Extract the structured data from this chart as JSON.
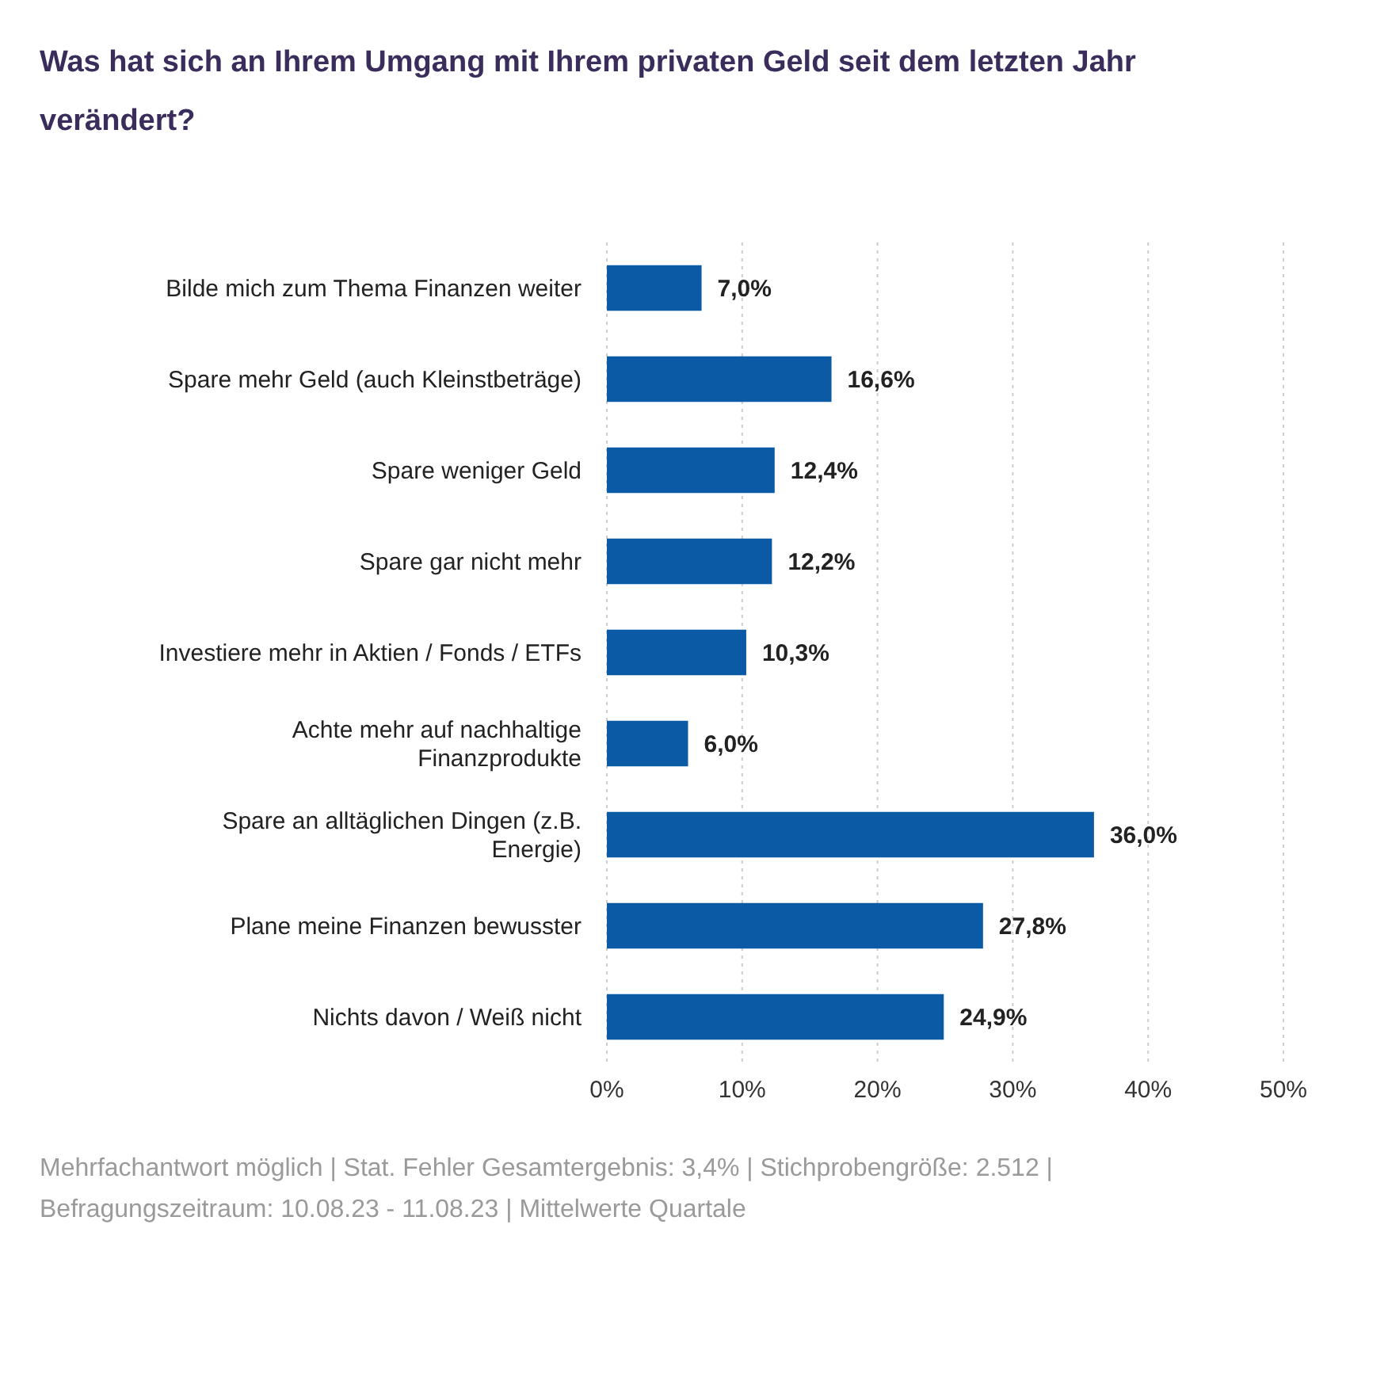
{
  "chart_data": {
    "type": "bar",
    "orientation": "horizontal",
    "title": "Was hat sich an Ihrem Umgang mit Ihrem privaten Geld seit dem letzten Jahr verändert?",
    "categories": [
      "Bilde mich zum Thema Finanzen weiter",
      "Spare mehr Geld (auch Kleinstbeträge)",
      "Spare weniger Geld",
      "Spare gar nicht mehr",
      "Investiere mehr in Aktien / Fonds / ETFs",
      "Achte mehr auf nachhaltige Finanzprodukte",
      "Spare an alltäglichen Dingen (z.B. Energie)",
      "Plane meine Finanzen bewusster",
      "Nichts davon / Weiß nicht"
    ],
    "values": [
      7.0,
      16.6,
      12.4,
      12.2,
      10.3,
      6.0,
      36.0,
      27.8,
      24.9
    ],
    "value_labels": [
      "7,0%",
      "16,6%",
      "12,4%",
      "12,2%",
      "10,3%",
      "6,0%",
      "36,0%",
      "27,8%",
      "24,9%"
    ],
    "color": "#0a5aa6",
    "grid": "x",
    "xlim": [
      0,
      50
    ],
    "xticks": [
      {
        "value": 0,
        "label": "0%"
      },
      {
        "value": 10,
        "label": "10%"
      },
      {
        "value": 20,
        "label": "20%"
      },
      {
        "value": 30,
        "label": "30%"
      },
      {
        "value": 40,
        "label": "40%"
      },
      {
        "value": 50,
        "label": "50%"
      }
    ],
    "annotations": [
      "Mehrfachantwort möglich | Stat. Fehler Gesamtergebnis: 3,4% | Stichprobengröße: 2.512 | Befragungszeitraum: 10.08.23 - 11.08.23 | Mittelwerte Quartale"
    ]
  }
}
